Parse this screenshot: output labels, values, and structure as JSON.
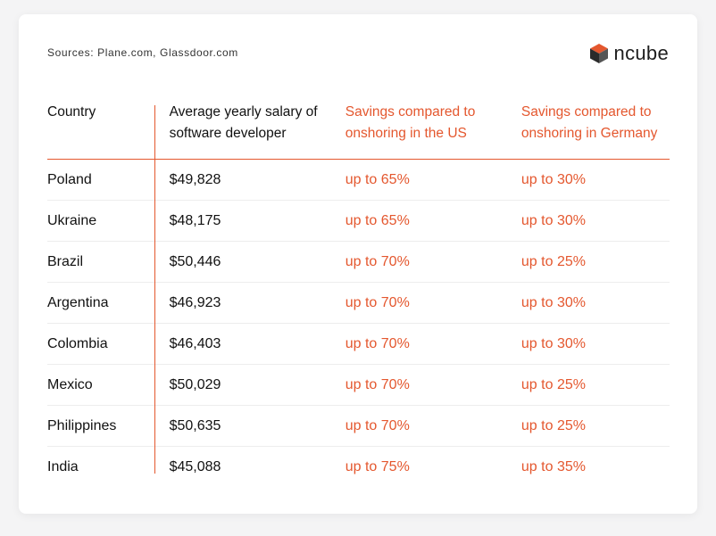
{
  "sources": "Sources: Plane.com, Glassdoor.com",
  "brand": {
    "name": "ncube",
    "colors": {
      "top": "#e4572e",
      "side": "#3a3a3a"
    }
  },
  "table": {
    "headers": [
      "Country",
      "Average yearly salary of software developer",
      "Savings compared to onshoring in the US",
      "Savings compared to onshoring in Germany"
    ],
    "rows": [
      [
        "Poland",
        "$49,828",
        "up to 65%",
        "up to 30%"
      ],
      [
        "Ukraine",
        "$48,175",
        "up to 65%",
        "up to 30%"
      ],
      [
        "Brazil",
        "$50,446",
        "up to 70%",
        "up to 25%"
      ],
      [
        "Argentina",
        "$46,923",
        "up to 70%",
        "up to 30%"
      ],
      [
        "Colombia",
        "$46,403",
        "up to 70%",
        "up to 30%"
      ],
      [
        "Mexico",
        "$50,029",
        "up to 70%",
        "up to 25%"
      ],
      [
        "Philippines",
        "$50,635",
        "up to 70%",
        "up to 25%"
      ],
      [
        "India",
        "$45,088",
        "up to 75%",
        "up to 35%"
      ]
    ]
  },
  "accent_color": "#e4572e"
}
